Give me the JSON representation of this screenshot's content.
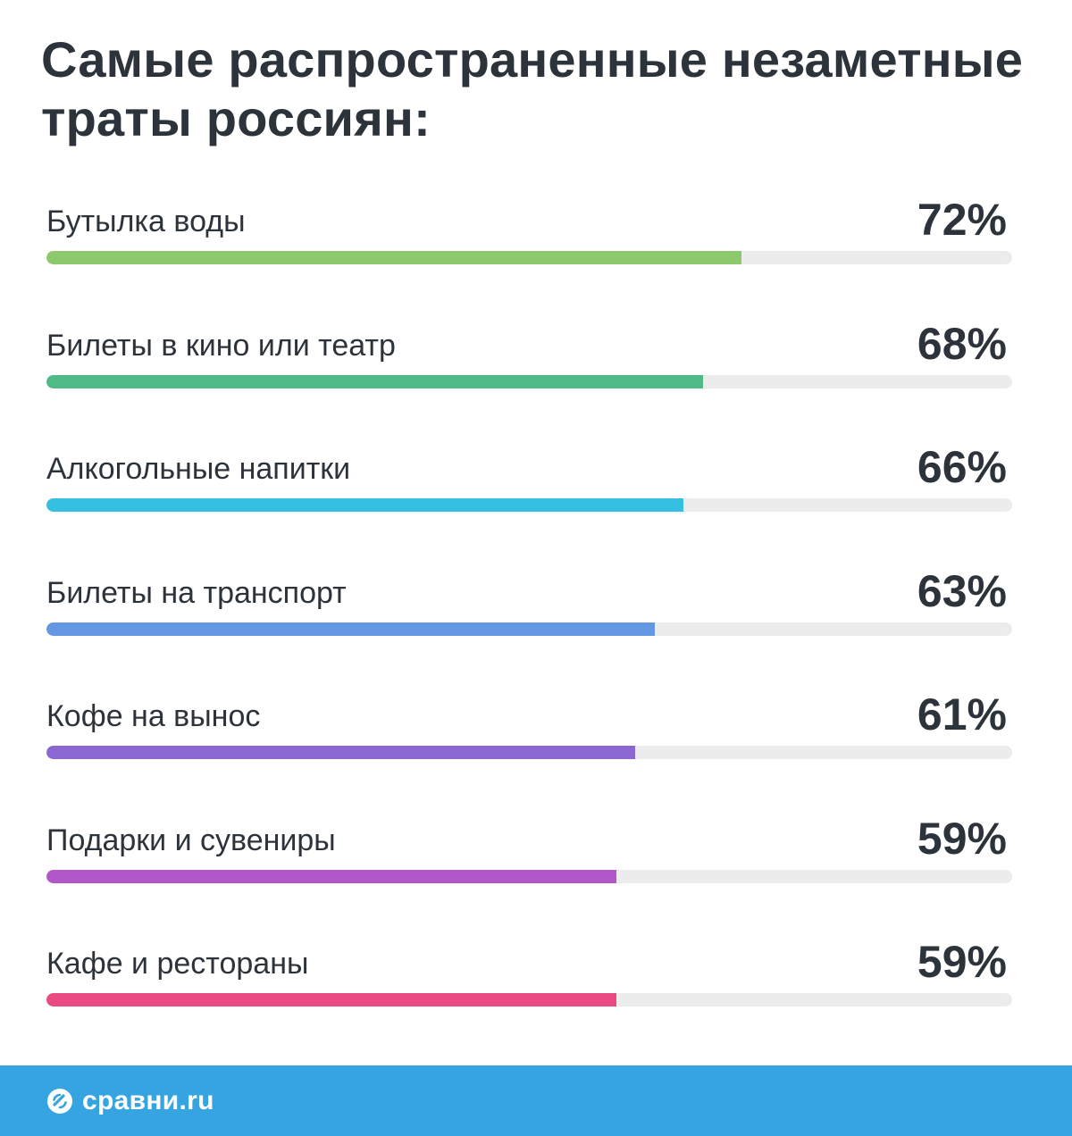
{
  "title": "Самые распространенные незаметные траты россиян:",
  "chart_data": {
    "type": "bar",
    "orientation": "horizontal",
    "title": "Самые распространенные незаметные траты россиян:",
    "xlim": [
      0,
      100
    ],
    "grid": false,
    "categories": [
      "Бутылка воды",
      "Билеты в кино или театр",
      "Алкогольные напитки",
      "Билеты на транспорт",
      "Кофе на вынос",
      "Подарки и сувениры",
      "Кафе и рестораны"
    ],
    "values": [
      72,
      68,
      66,
      63,
      61,
      59,
      59
    ],
    "value_labels": [
      "72%",
      "68%",
      "66%",
      "63%",
      "61%",
      "59%",
      "59%"
    ],
    "colors": [
      "#8bc96c",
      "#4fba86",
      "#35bfe0",
      "#6397e2",
      "#8b67d2",
      "#b257c9",
      "#e94a82"
    ],
    "track_color": "#ececec"
  },
  "footer": {
    "brand": "сравни.ru",
    "background": "#36a4e0",
    "icon": "sravni-logo-icon"
  }
}
